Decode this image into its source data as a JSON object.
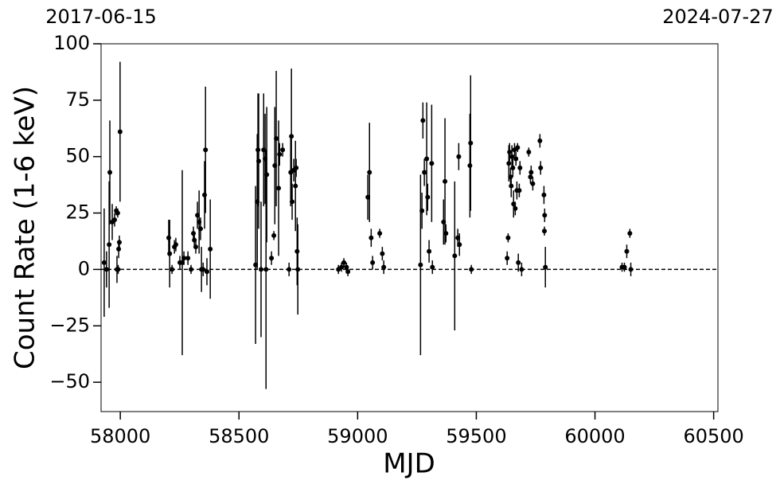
{
  "chart_data": {
    "type": "errorbar-scatter",
    "xlabel": "MJD",
    "ylabel": "Count Rate (1-6 keV)",
    "xlim": [
      57919,
      60518
    ],
    "ylim": [
      -63,
      100
    ],
    "xticks": [
      58000,
      58500,
      59000,
      59500,
      60000,
      60500
    ],
    "yticks": [
      {
        "value": -50,
        "label": "−50"
      },
      {
        "value": -25,
        "label": "−25"
      },
      0,
      25,
      50,
      75,
      100
    ],
    "x2ticks": [
      {
        "value": 57919,
        "label": "2017-06-15"
      },
      {
        "value": 60518,
        "label": "2024-07-27"
      }
    ],
    "hline": 0,
    "color": "#000000",
    "x": [
      57932,
      57942,
      57953,
      57956,
      57966,
      57976,
      57983,
      57989,
      57986,
      57996,
      57993,
      57999,
      57991,
      58204,
      58208,
      58218,
      58228,
      58234,
      58251,
      58261,
      58268,
      58285,
      58298,
      58308,
      58312,
      58318,
      58325,
      58332,
      58338,
      58342,
      58349,
      58355,
      58359,
      58365,
      58379,
      58570,
      58577,
      58580,
      58583,
      58593,
      58604,
      58610,
      58614,
      58617,
      58637,
      58647,
      58651,
      58657,
      58667,
      58671,
      58684,
      58711,
      58718,
      58721,
      58724,
      58731,
      58738,
      58741,
      58745,
      58748,
      58919,
      58932,
      58942,
      58953,
      58959,
      59043,
      59050,
      59057,
      59063,
      59093,
      59104,
      59110,
      59265,
      59271,
      59275,
      59281,
      59291,
      59295,
      59301,
      59312,
      59315,
      59362,
      59368,
      59372,
      59409,
      59422,
      59426,
      59429,
      59473,
      59476,
      59479,
      59630,
      59634,
      59637,
      59640,
      59644,
      59647,
      59650,
      59654,
      59657,
      59661,
      59664,
      59667,
      59671,
      59674,
      59677,
      59681,
      59684,
      59691,
      59721,
      59731,
      59738,
      59728,
      59768,
      59771,
      59785,
      59788,
      59791,
      59787,
      60114,
      60124,
      60134,
      60147,
      60151
    ],
    "y": [
      3,
      0,
      11,
      43,
      21,
      22,
      26,
      25,
      0,
      12,
      9,
      61,
      0,
      14,
      7,
      0,
      10,
      11,
      3,
      3,
      5,
      5,
      0,
      16,
      13,
      10,
      24,
      21,
      18,
      0,
      0,
      33,
      53,
      -1,
      9,
      2,
      30,
      53,
      48,
      0,
      53,
      49,
      0,
      42,
      5,
      15,
      46,
      58,
      36,
      51,
      53,
      0,
      43,
      59,
      30,
      44,
      37,
      45,
      8,
      0,
      0,
      1,
      3,
      1,
      -1,
      32,
      43,
      14,
      3,
      16,
      7,
      1,
      2,
      26,
      66,
      43,
      49,
      32,
      8,
      47,
      1,
      21,
      39,
      16,
      6,
      14,
      50,
      11,
      46,
      56,
      0,
      5,
      14,
      47,
      52,
      41,
      37,
      50,
      45,
      29,
      53,
      27,
      49,
      35,
      54,
      3,
      35,
      45,
      0,
      52,
      43,
      38,
      41,
      57,
      45,
      33,
      24,
      1,
      17,
      1,
      1,
      8,
      16,
      0
    ],
    "yerr": [
      24,
      8,
      28,
      23,
      8,
      3,
      2,
      2,
      6,
      3,
      4,
      31,
      2,
      8,
      15,
      2,
      3,
      3,
      3,
      41,
      3,
      3,
      2,
      3,
      3,
      3,
      6,
      14,
      5,
      10,
      3,
      15,
      28,
      6,
      22,
      35,
      30,
      25,
      30,
      30,
      25,
      20,
      53,
      30,
      3,
      2,
      26,
      30,
      30,
      5,
      3,
      3,
      15,
      30,
      8,
      5,
      20,
      4,
      15,
      20,
      2,
      2,
      2,
      2,
      2,
      10,
      22,
      4,
      3,
      2,
      3,
      3,
      40,
      8,
      8,
      6,
      25,
      6,
      5,
      26,
      3,
      10,
      28,
      4,
      33,
      4,
      6,
      5,
      23,
      30,
      2,
      3,
      2,
      8,
      4,
      4,
      5,
      5,
      4,
      6,
      3,
      3,
      3,
      4,
      2,
      4,
      3,
      3,
      3,
      2,
      3,
      3,
      3,
      3,
      3,
      4,
      3,
      9,
      2,
      2,
      2,
      3,
      2,
      3
    ]
  }
}
